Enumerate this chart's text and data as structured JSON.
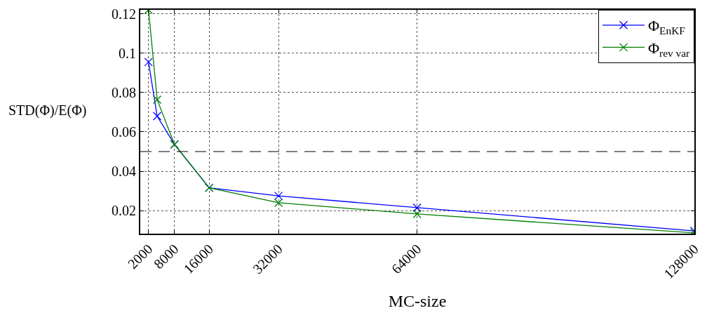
{
  "chart_data": {
    "type": "line",
    "xlabel": "MC-size",
    "ylabel": "STD(Φ)/E(Φ)",
    "x": [
      2000,
      4000,
      8000,
      16000,
      32000,
      64000,
      128000
    ],
    "series": [
      {
        "name": "Φ$_{EnKF}$",
        "color": "#0000ff",
        "values": [
          0.0955,
          0.068,
          0.0536,
          0.0316,
          0.0275,
          0.0215,
          0.0097
        ]
      },
      {
        "name": "Φ$_{rev var}$",
        "color": "#008000",
        "values": [
          0.122,
          0.0764,
          0.0536,
          0.0316,
          0.024,
          0.0183,
          0.0087
        ]
      }
    ],
    "xlim": [
      100,
      128000
    ],
    "xticks": [
      2000,
      8000,
      16000,
      32000,
      64000,
      128000
    ],
    "ylim": [
      0.0083,
      0.122
    ],
    "yticks": [
      0.02,
      0.04,
      0.06,
      0.08,
      0.1,
      0.12
    ],
    "ref_lines": [
      {
        "axis": "y",
        "value": 0.05,
        "color": "#000000",
        "line_style": "dashed"
      }
    ],
    "grid": true,
    "legend": "top right",
    "marker": "cross",
    "line_style": "solid"
  }
}
